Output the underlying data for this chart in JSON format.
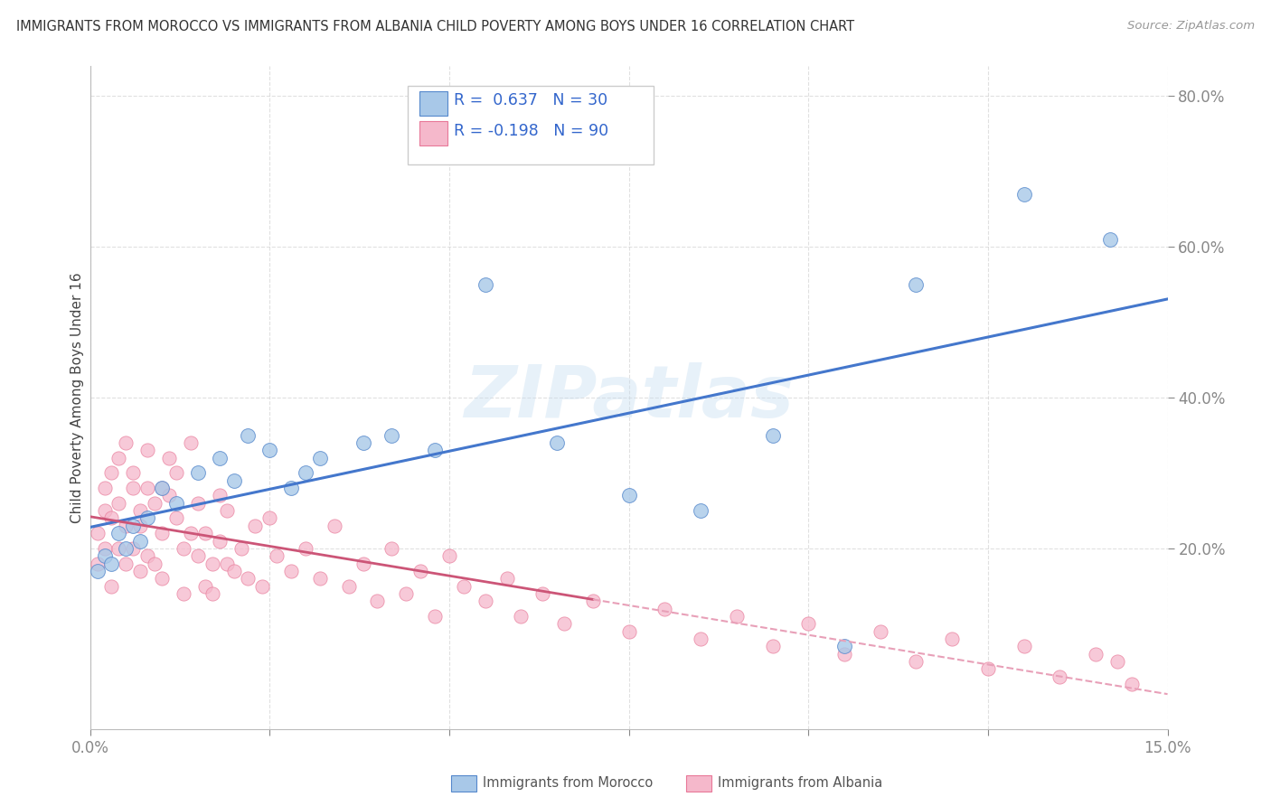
{
  "title": "IMMIGRANTS FROM MOROCCO VS IMMIGRANTS FROM ALBANIA CHILD POVERTY AMONG BOYS UNDER 16 CORRELATION CHART",
  "source": "Source: ZipAtlas.com",
  "ylabel": "Child Poverty Among Boys Under 16",
  "xlim": [
    0.0,
    0.15
  ],
  "ylim": [
    -0.04,
    0.84
  ],
  "y_ticks": [
    0.2,
    0.4,
    0.6,
    0.8
  ],
  "y_tick_labels": [
    "20.0%",
    "40.0%",
    "60.0%",
    "80.0%"
  ],
  "watermark": "ZIPatlas",
  "morocco_color": "#a8c8e8",
  "albania_color": "#f5b8cb",
  "morocco_edge": "#5588cc",
  "albania_edge": "#e87898",
  "trend_morocco_color": "#4477cc",
  "trend_albania_solid_color": "#cc5577",
  "trend_albania_dash_color": "#e8a0b8",
  "background_color": "#ffffff",
  "grid_color": "#cccccc",
  "morocco_x": [
    0.001,
    0.002,
    0.003,
    0.004,
    0.005,
    0.006,
    0.007,
    0.008,
    0.01,
    0.012,
    0.015,
    0.018,
    0.02,
    0.022,
    0.025,
    0.028,
    0.03,
    0.032,
    0.038,
    0.042,
    0.048,
    0.055,
    0.065,
    0.075,
    0.085,
    0.095,
    0.105,
    0.115,
    0.13,
    0.142
  ],
  "morocco_y": [
    0.17,
    0.19,
    0.18,
    0.22,
    0.2,
    0.23,
    0.21,
    0.24,
    0.28,
    0.26,
    0.3,
    0.32,
    0.29,
    0.35,
    0.33,
    0.28,
    0.3,
    0.32,
    0.34,
    0.35,
    0.33,
    0.55,
    0.34,
    0.27,
    0.25,
    0.35,
    0.07,
    0.55,
    0.67,
    0.61
  ],
  "albania_x": [
    0.001,
    0.001,
    0.002,
    0.002,
    0.002,
    0.003,
    0.003,
    0.003,
    0.004,
    0.004,
    0.004,
    0.005,
    0.005,
    0.005,
    0.006,
    0.006,
    0.006,
    0.007,
    0.007,
    0.007,
    0.008,
    0.008,
    0.008,
    0.009,
    0.009,
    0.01,
    0.01,
    0.01,
    0.011,
    0.011,
    0.012,
    0.012,
    0.013,
    0.013,
    0.014,
    0.014,
    0.015,
    0.015,
    0.016,
    0.016,
    0.017,
    0.017,
    0.018,
    0.018,
    0.019,
    0.019,
    0.02,
    0.021,
    0.022,
    0.023,
    0.024,
    0.025,
    0.026,
    0.028,
    0.03,
    0.032,
    0.034,
    0.036,
    0.038,
    0.04,
    0.042,
    0.044,
    0.046,
    0.048,
    0.05,
    0.052,
    0.055,
    0.058,
    0.06,
    0.063,
    0.066,
    0.07,
    0.075,
    0.08,
    0.085,
    0.09,
    0.095,
    0.1,
    0.105,
    0.11,
    0.115,
    0.12,
    0.125,
    0.13,
    0.135,
    0.14,
    0.143,
    0.145
  ],
  "albania_y": [
    0.22,
    0.18,
    0.25,
    0.2,
    0.28,
    0.24,
    0.3,
    0.15,
    0.2,
    0.26,
    0.32,
    0.23,
    0.34,
    0.18,
    0.28,
    0.3,
    0.2,
    0.25,
    0.17,
    0.23,
    0.28,
    0.33,
    0.19,
    0.26,
    0.18,
    0.22,
    0.16,
    0.28,
    0.27,
    0.32,
    0.24,
    0.3,
    0.2,
    0.14,
    0.22,
    0.34,
    0.19,
    0.26,
    0.15,
    0.22,
    0.14,
    0.18,
    0.21,
    0.27,
    0.18,
    0.25,
    0.17,
    0.2,
    0.16,
    0.23,
    0.15,
    0.24,
    0.19,
    0.17,
    0.2,
    0.16,
    0.23,
    0.15,
    0.18,
    0.13,
    0.2,
    0.14,
    0.17,
    0.11,
    0.19,
    0.15,
    0.13,
    0.16,
    0.11,
    0.14,
    0.1,
    0.13,
    0.09,
    0.12,
    0.08,
    0.11,
    0.07,
    0.1,
    0.06,
    0.09,
    0.05,
    0.08,
    0.04,
    0.07,
    0.03,
    0.06,
    0.05,
    0.02
  ]
}
